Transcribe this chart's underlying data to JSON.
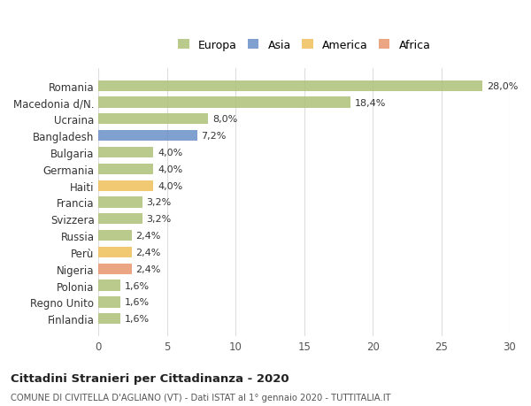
{
  "categories": [
    "Romania",
    "Macedonia d/N.",
    "Ucraina",
    "Bangladesh",
    "Bulgaria",
    "Germania",
    "Haiti",
    "Francia",
    "Svizzera",
    "Russia",
    "Perù",
    "Nigeria",
    "Polonia",
    "Regno Unito",
    "Finlandia"
  ],
  "values": [
    28.0,
    18.4,
    8.0,
    7.2,
    4.0,
    4.0,
    4.0,
    3.2,
    3.2,
    2.4,
    2.4,
    2.4,
    1.6,
    1.6,
    1.6
  ],
  "labels": [
    "28,0%",
    "18,4%",
    "8,0%",
    "7,2%",
    "4,0%",
    "4,0%",
    "4,0%",
    "3,2%",
    "3,2%",
    "2,4%",
    "2,4%",
    "2,4%",
    "1,6%",
    "1,6%",
    "1,6%"
  ],
  "continents": [
    "Europa",
    "Europa",
    "Europa",
    "Asia",
    "Europa",
    "Europa",
    "America",
    "Europa",
    "Europa",
    "Europa",
    "America",
    "Africa",
    "Europa",
    "Europa",
    "Europa"
  ],
  "colors": {
    "Europa": "#adc178",
    "Asia": "#6a8fc8",
    "America": "#f0c05a",
    "Africa": "#e8956d"
  },
  "legend_order": [
    "Europa",
    "Asia",
    "America",
    "Africa"
  ],
  "title": "Cittadini Stranieri per Cittadinanza - 2020",
  "subtitle": "COMUNE DI CIVITELLA D'AGLIANO (VT) - Dati ISTAT al 1° gennaio 2020 - TUTTITALIA.IT",
  "xlim": [
    0,
    30
  ],
  "xticks": [
    0,
    5,
    10,
    15,
    20,
    25,
    30
  ],
  "background_color": "#ffffff",
  "grid_color": "#dddddd",
  "bar_alpha": 0.85
}
